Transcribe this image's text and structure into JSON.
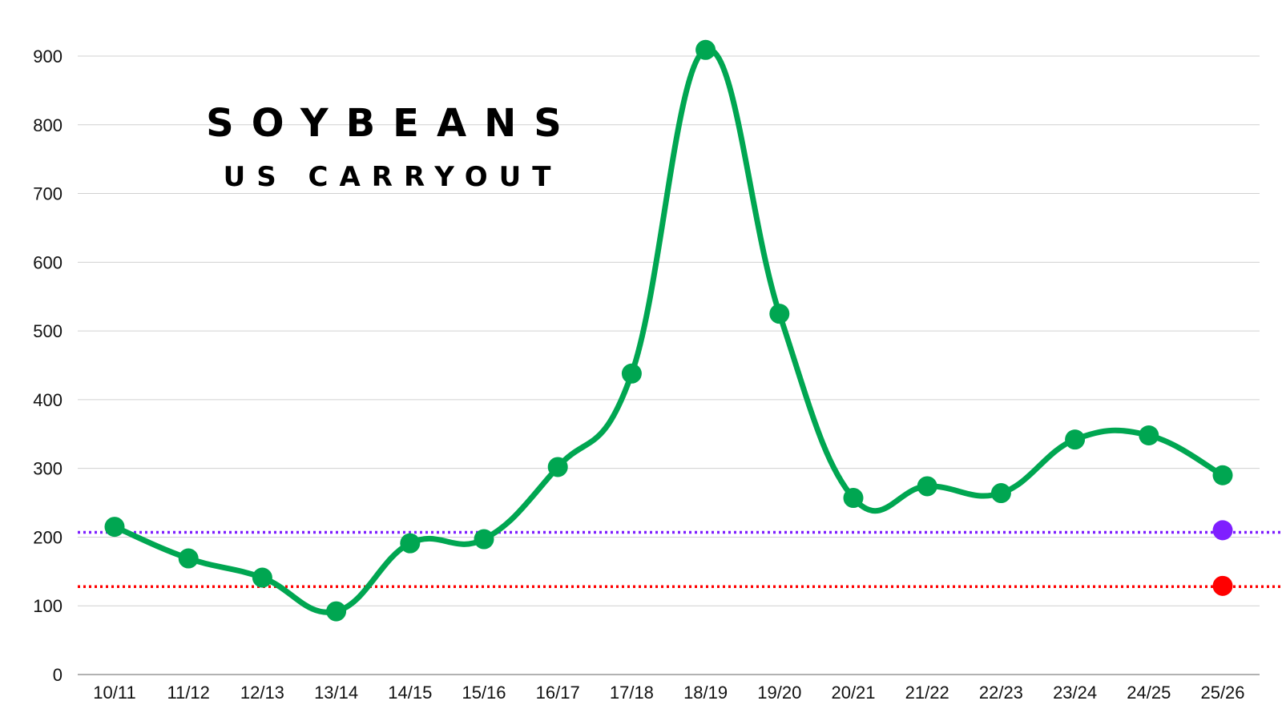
{
  "chart_data": {
    "type": "line",
    "title": "SOYBEANS",
    "subtitle": "US CARRYOUT",
    "xlabel": "",
    "ylabel": "",
    "categories": [
      "10/11",
      "11/12",
      "12/13",
      "13/14",
      "14/15",
      "15/16",
      "16/17",
      "17/18",
      "18/19",
      "19/20",
      "20/21",
      "21/22",
      "22/23",
      "23/24",
      "24/25",
      "25/26"
    ],
    "series": [
      {
        "values": [
          215,
          169,
          141,
          92,
          191,
          197,
          302,
          438,
          909,
          525,
          257,
          274,
          264,
          342,
          348,
          290
        ],
        "color": "#00a651"
      }
    ],
    "reference_lines": [
      {
        "value": 207,
        "color": "#7f1fff",
        "style": "dotted"
      },
      {
        "value": 128,
        "color": "#ff0000",
        "style": "dotted"
      }
    ],
    "highlight_points": [
      {
        "category": "25/26",
        "value": 210,
        "color": "#7f1fff"
      },
      {
        "category": "25/26",
        "value": 129,
        "color": "#ff0000"
      }
    ],
    "ylim": [
      0,
      900
    ],
    "yticks": [
      0,
      100,
      200,
      300,
      400,
      500,
      600,
      700,
      800,
      900
    ],
    "grid": true,
    "legend": "none"
  }
}
